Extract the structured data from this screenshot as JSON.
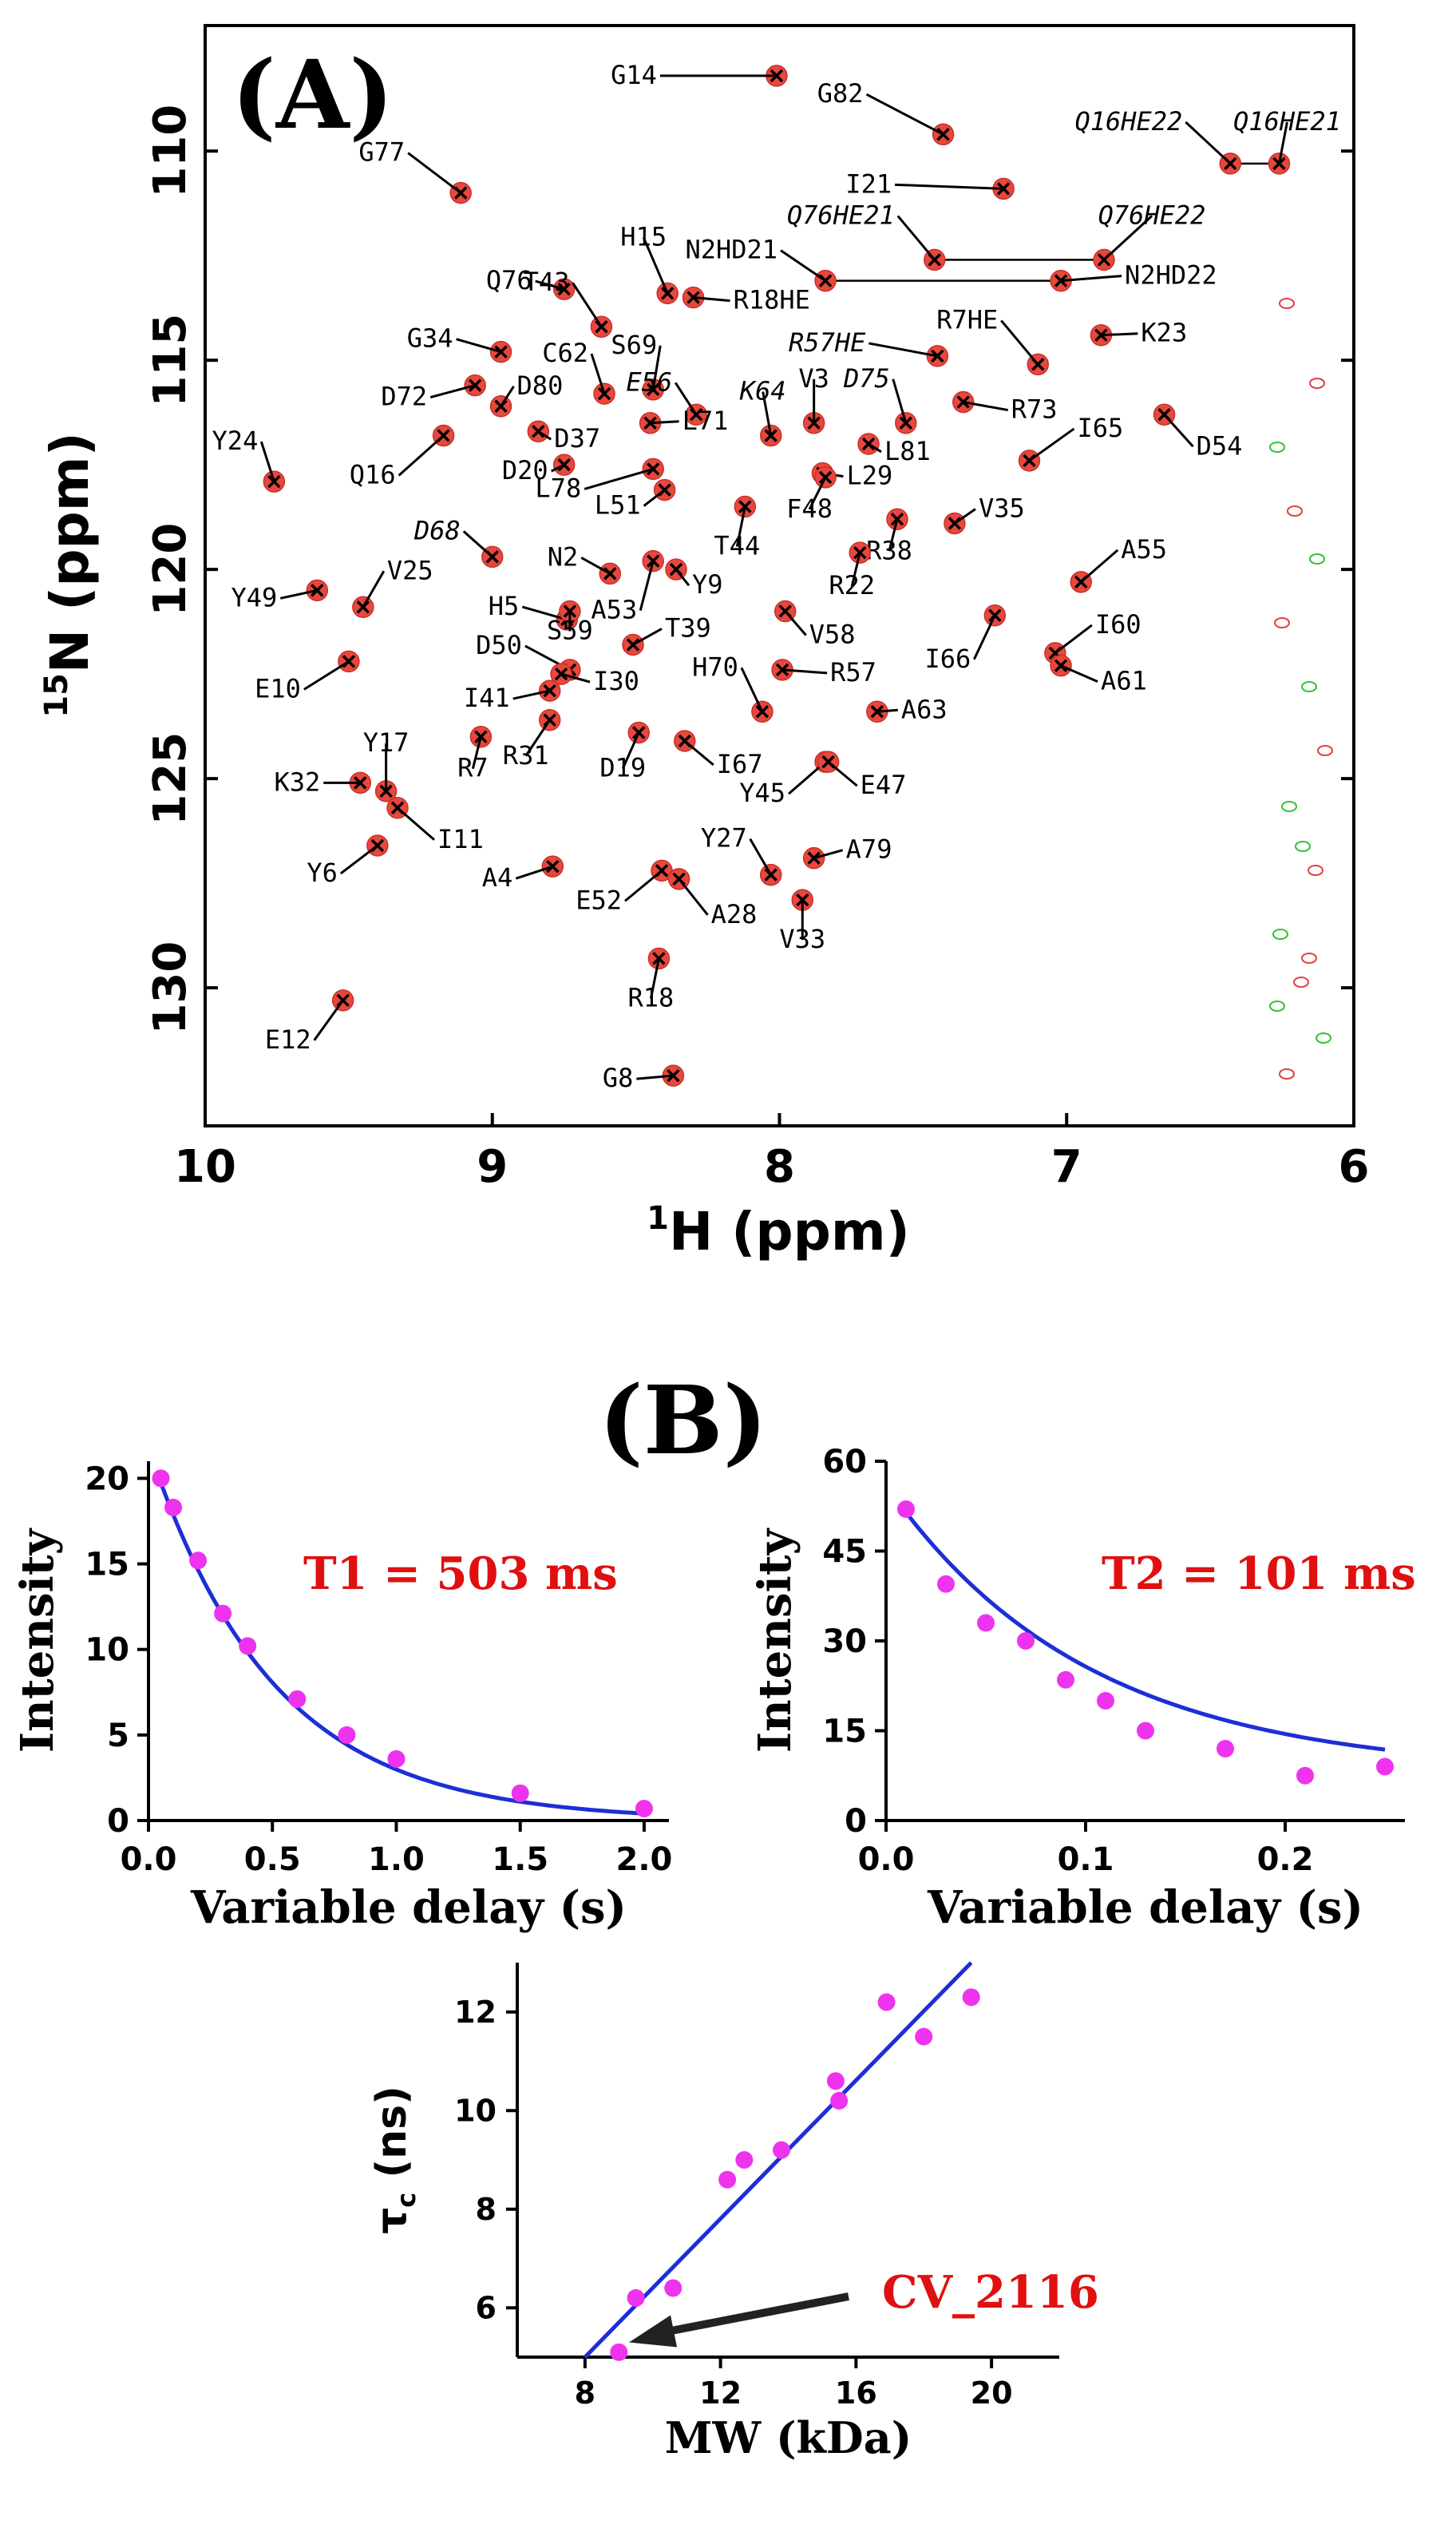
{
  "chart_data": [
    {
      "type": "scatter",
      "panel_label": "(A)",
      "title": "",
      "xlabel": {
        "sup": "1",
        "main": "H (ppm)"
      },
      "ylabel": {
        "sup": "15",
        "main": "N (ppm)"
      },
      "xlim": [
        10,
        6
      ],
      "ylim": [
        133.3,
        107.0
      ],
      "xticks": [
        10,
        9,
        8,
        7,
        6
      ],
      "xtick_labels": [
        "10",
        "9",
        "8",
        "7",
        "6"
      ],
      "yticks": [
        110,
        115,
        120,
        125,
        130
      ],
      "ytick_labels": [
        "110",
        "115",
        "120",
        "125",
        "130"
      ],
      "peaks": [
        {
          "label": "G14",
          "h": 8.01,
          "n": 108.2
        },
        {
          "label": "G82",
          "h": 7.43,
          "n": 109.6
        },
        {
          "label": "Q16HE22",
          "h": 6.43,
          "n": 110.3
        },
        {
          "label": "Q16HE21",
          "h": 6.26,
          "n": 110.3
        },
        {
          "label": "G77",
          "h": 9.11,
          "n": 111.0
        },
        {
          "label": "I21",
          "h": 7.22,
          "n": 110.9
        },
        {
          "label": "Q76HE21",
          "h": 7.46,
          "n": 112.6
        },
        {
          "label": "Q76HE22",
          "h": 6.87,
          "n": 112.6
        },
        {
          "label": "N2HD21",
          "h": 7.84,
          "n": 113.1
        },
        {
          "label": "N2HD22",
          "h": 7.02,
          "n": 113.1
        },
        {
          "label": "H15",
          "h": 8.39,
          "n": 113.4
        },
        {
          "label": "Q76",
          "h": 8.75,
          "n": 113.3
        },
        {
          "label": "T43",
          "h": 8.62,
          "n": 114.2
        },
        {
          "label": "R18HE",
          "h": 8.3,
          "n": 113.5
        },
        {
          "label": "G34",
          "h": 8.97,
          "n": 114.8
        },
        {
          "label": "C62",
          "h": 8.61,
          "n": 115.8
        },
        {
          "label": "S69",
          "h": 8.44,
          "n": 115.7
        },
        {
          "label": "R57HE",
          "h": 7.45,
          "n": 114.9
        },
        {
          "label": "R7HE",
          "h": 7.1,
          "n": 115.1
        },
        {
          "label": "K23",
          "h": 6.88,
          "n": 114.4
        },
        {
          "label": "D72",
          "h": 9.06,
          "n": 115.6
        },
        {
          "label": "D80",
          "h": 8.97,
          "n": 116.1
        },
        {
          "label": "E56",
          "h": 8.29,
          "n": 116.3
        },
        {
          "label": "K64",
          "h": 8.03,
          "n": 116.8
        },
        {
          "label": "V3",
          "h": 7.88,
          "n": 116.5
        },
        {
          "label": "D75",
          "h": 7.56,
          "n": 116.5
        },
        {
          "label": "R73",
          "h": 7.36,
          "n": 116.0
        },
        {
          "label": "D54",
          "h": 6.66,
          "n": 116.3
        },
        {
          "label": "Y24",
          "h": 9.76,
          "n": 117.9
        },
        {
          "label": "Q16",
          "h": 9.17,
          "n": 116.8
        },
        {
          "label": "D37",
          "h": 8.84,
          "n": 116.7
        },
        {
          "label": "D20",
          "h": 8.75,
          "n": 117.5
        },
        {
          "label": "L71",
          "h": 8.45,
          "n": 116.5
        },
        {
          "label": "L81",
          "h": 7.69,
          "n": 117.0
        },
        {
          "label": "I65",
          "h": 7.13,
          "n": 117.4
        },
        {
          "label": "L78",
          "h": 8.44,
          "n": 117.6
        },
        {
          "label": "L51",
          "h": 8.4,
          "n": 118.1
        },
        {
          "label": "L29",
          "h": 7.85,
          "n": 117.7
        },
        {
          "label": "F48",
          "h": 7.84,
          "n": 117.8
        },
        {
          "label": "T44",
          "h": 8.12,
          "n": 118.5
        },
        {
          "label": "R38",
          "h": 7.59,
          "n": 118.8
        },
        {
          "label": "V35",
          "h": 7.39,
          "n": 118.9
        },
        {
          "label": "D68",
          "h": 9.0,
          "n": 119.7
        },
        {
          "label": "A53",
          "h": 8.44,
          "n": 119.8
        },
        {
          "label": "N2",
          "h": 8.59,
          "n": 120.1
        },
        {
          "label": "Y9",
          "h": 8.36,
          "n": 120.0
        },
        {
          "label": "R22",
          "h": 7.72,
          "n": 119.6
        },
        {
          "label": "A55",
          "h": 6.95,
          "n": 120.3
        },
        {
          "label": "Y49",
          "h": 9.61,
          "n": 120.5
        },
        {
          "label": "V25",
          "h": 9.45,
          "n": 120.9
        },
        {
          "label": "H5",
          "h": 8.74,
          "n": 121.2
        },
        {
          "label": "S59",
          "h": 8.73,
          "n": 121.0
        },
        {
          "label": "T39",
          "h": 8.51,
          "n": 121.8
        },
        {
          "label": "V58",
          "h": 7.98,
          "n": 121.0
        },
        {
          "label": "I66",
          "h": 7.25,
          "n": 121.1
        },
        {
          "label": "I60",
          "h": 7.04,
          "n": 122.0
        },
        {
          "label": "A61",
          "h": 7.02,
          "n": 122.3
        },
        {
          "label": "E10",
          "h": 9.5,
          "n": 122.2
        },
        {
          "label": "D50",
          "h": 8.73,
          "n": 122.4
        },
        {
          "label": "I30",
          "h": 8.76,
          "n": 122.5
        },
        {
          "label": "I41",
          "h": 8.8,
          "n": 122.9
        },
        {
          "label": "H70",
          "h": 8.06,
          "n": 123.4
        },
        {
          "label": "R57",
          "h": 7.99,
          "n": 122.4
        },
        {
          "label": "A63",
          "h": 7.66,
          "n": 123.4
        },
        {
          "label": "R7",
          "h": 9.04,
          "n": 124.0
        },
        {
          "label": "R31",
          "h": 8.8,
          "n": 123.6
        },
        {
          "label": "D19",
          "h": 8.49,
          "n": 123.9
        },
        {
          "label": "I67",
          "h": 8.33,
          "n": 124.1
        },
        {
          "label": "Y45",
          "h": 7.84,
          "n": 124.6
        },
        {
          "label": "E47",
          "h": 7.83,
          "n": 124.6
        },
        {
          "label": "Y17",
          "h": 9.37,
          "n": 125.3
        },
        {
          "label": "K32",
          "h": 9.46,
          "n": 125.1
        },
        {
          "label": "I11",
          "h": 9.33,
          "n": 125.7
        },
        {
          "label": "Y6",
          "h": 9.4,
          "n": 126.6
        },
        {
          "label": "A4",
          "h": 8.79,
          "n": 127.1
        },
        {
          "label": "E52",
          "h": 8.41,
          "n": 127.2
        },
        {
          "label": "A28",
          "h": 8.35,
          "n": 127.4
        },
        {
          "label": "Y27",
          "h": 8.03,
          "n": 127.3
        },
        {
          "label": "A79",
          "h": 7.88,
          "n": 126.9
        },
        {
          "label": "V33",
          "h": 7.92,
          "n": 127.9
        },
        {
          "label": "R18",
          "h": 8.42,
          "n": 129.3
        },
        {
          "label": "E12",
          "h": 9.52,
          "n": 130.3
        },
        {
          "label": "G8",
          "h": 8.37,
          "n": 132.1
        }
      ]
    },
    {
      "type": "scatter",
      "panel_label": "(B)",
      "title": "",
      "annotation": "T1 = 503 ms",
      "xlabel": "Variable delay (s)",
      "ylabel": "Intensity",
      "xlim": [
        0,
        2.1
      ],
      "ylim": [
        0,
        21
      ],
      "xticks": [
        0,
        0.5,
        1.0,
        1.5,
        2.0
      ],
      "xtick_labels": [
        "0.0",
        "0.5",
        "1.0",
        "1.5",
        "2.0"
      ],
      "yticks": [
        0,
        5,
        10,
        15,
        20
      ],
      "ytick_labels": [
        "0",
        "5",
        "10",
        "15",
        "20"
      ],
      "x": [
        0.05,
        0.1,
        0.2,
        0.3,
        0.4,
        0.6,
        0.8,
        1.0,
        1.5,
        2.0
      ],
      "y": [
        20.0,
        18.3,
        15.2,
        12.1,
        10.2,
        7.1,
        5.0,
        3.6,
        1.6,
        0.7
      ],
      "fit": {
        "model": "exponential decay",
        "amplitude": 21.8,
        "tau_s": 0.503,
        "offset": 0,
        "x_range": [
          0.05,
          2.0
        ]
      }
    },
    {
      "type": "scatter",
      "annotation": "T2 = 101 ms",
      "xlabel": "Variable delay (s)",
      "ylabel": "Intensity",
      "xlim": [
        0,
        0.26
      ],
      "ylim": [
        0,
        60
      ],
      "xticks": [
        0,
        0.1,
        0.2
      ],
      "xtick_labels": [
        "0.0",
        "0.1",
        "0.2"
      ],
      "yticks": [
        0,
        15,
        30,
        45,
        60
      ],
      "ytick_labels": [
        "0",
        "15",
        "30",
        "45",
        "60"
      ],
      "x": [
        0.01,
        0.03,
        0.05,
        0.07,
        0.09,
        0.11,
        0.13,
        0.17,
        0.21,
        0.25
      ],
      "y": [
        52,
        39.5,
        33,
        30,
        23.5,
        20,
        15,
        12,
        7.5,
        9
      ],
      "fit": {
        "model": "exponential decay",
        "amplitude": 48.2,
        "tau_s": 0.101,
        "offset": 7.8,
        "x_range": [
          0.01,
          0.25
        ]
      }
    },
    {
      "type": "scatter",
      "annotation": "CV_2116",
      "xlabel": "MW (kDa)",
      "ylabel": {
        "main": "τ",
        "sub": "c",
        "rest": " (ns)"
      },
      "xlim": [
        6,
        22
      ],
      "ylim": [
        5,
        13
      ],
      "xticks": [
        8,
        12,
        16,
        20
      ],
      "xtick_labels": [
        "8",
        "12",
        "16",
        "20"
      ],
      "yticks": [
        6,
        8,
        10,
        12
      ],
      "ytick_labels": [
        "6",
        "8",
        "10",
        "12"
      ],
      "x": [
        9.0,
        9.5,
        10.6,
        12.2,
        12.7,
        13.8,
        15.4,
        15.5,
        16.9,
        18.0,
        19.4
      ],
      "y": [
        5.1,
        6.2,
        6.4,
        8.6,
        9.0,
        9.2,
        10.6,
        10.2,
        12.2,
        11.5,
        12.3
      ],
      "fit": {
        "model": "linear",
        "x": [
          8.0,
          19.4
        ],
        "y": [
          5.0,
          13.0
        ]
      },
      "arrow_target": {
        "x": 9.3,
        "y": 5.3
      }
    }
  ],
  "colors": {
    "peak": "#e8473d",
    "cross": "#000000",
    "contour_red": "#e04040",
    "contour_green": "#33c233",
    "point": "#ee33ee",
    "fit": "#1c2fd6",
    "annotation": "#e01010"
  }
}
